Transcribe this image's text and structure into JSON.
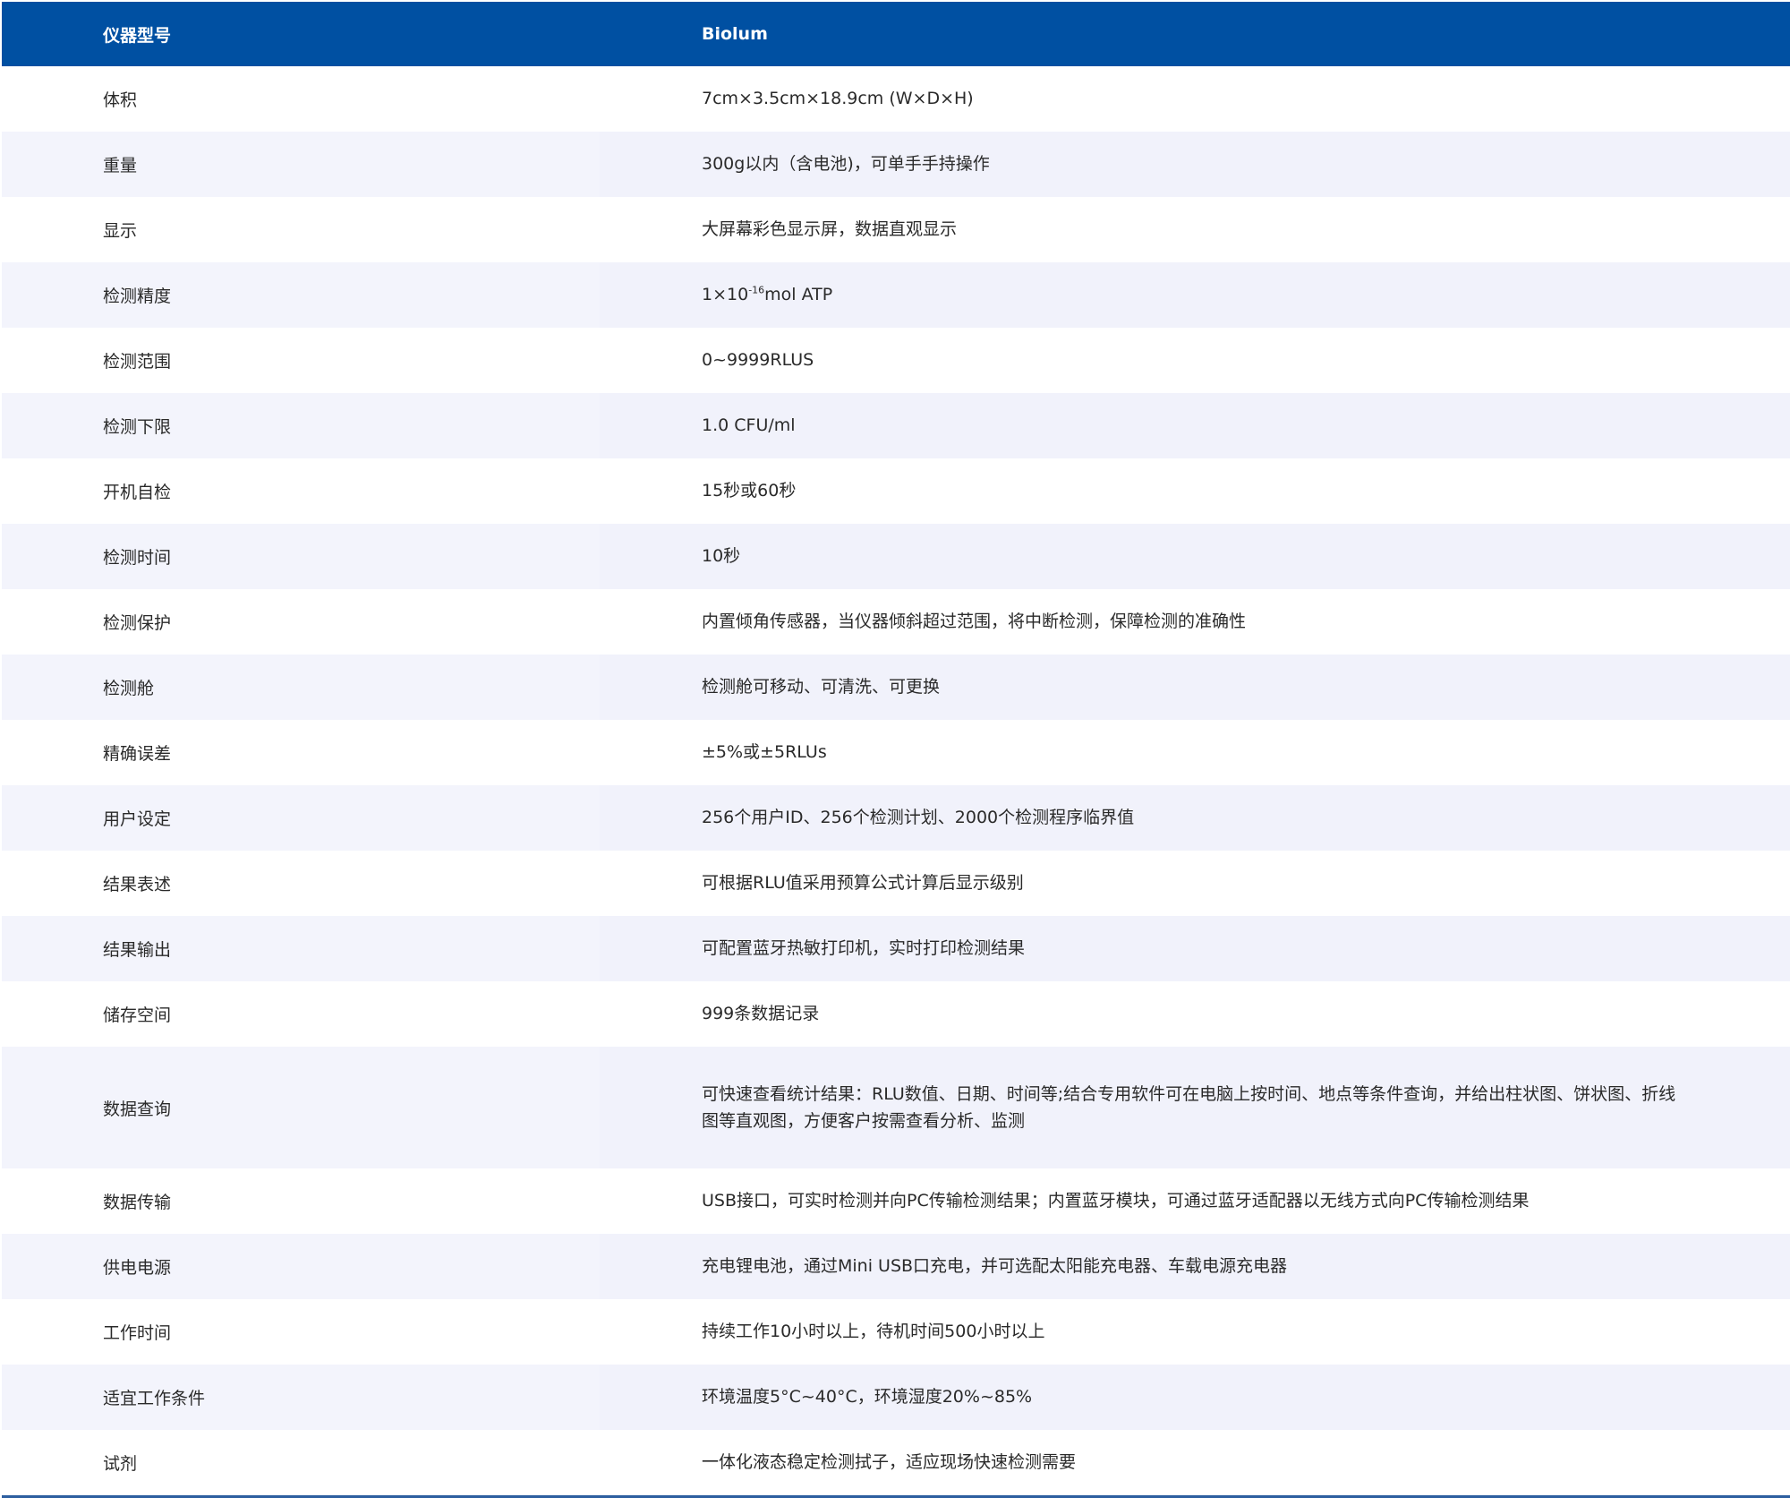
{
  "header": {
    "label": "仪器型号",
    "value": "Biolum"
  },
  "colors": {
    "header_bg": "#0050a2",
    "alt_row_bg": "#f3f4fc",
    "border": "#2d5fa0"
  },
  "rows": [
    {
      "label": "体积",
      "value": "7cm×3.5cm×18.9cm (W×D×H)"
    },
    {
      "label": "重量",
      "value": "300g以内（含电池)，可单手手持操作"
    },
    {
      "label": "显示",
      "value": "大屏幕彩色显示屏，数据直观显示"
    },
    {
      "label": "检测精度",
      "value": "1×10",
      "value_sup": "-16",
      "value_after": "mol ATP"
    },
    {
      "label": "检测范围",
      "value": "0~9999RLUS"
    },
    {
      "label": "检测下限",
      "value": "1.0 CFU/ml"
    },
    {
      "label": "开机自检",
      "value": "15秒或60秒"
    },
    {
      "label": "检测时间",
      "value": "10秒"
    },
    {
      "label": "检测保护",
      "value": "内置倾角传感器，当仪器倾斜超过范围，将中断检测，保障检测的准确性"
    },
    {
      "label": "检测舱",
      "value": "检测舱可移动、可清洗、可更换"
    },
    {
      "label": "精确误差",
      "value": "±5%或±5RLUs"
    },
    {
      "label": "用户设定",
      "value": "256个用户ID、256个检测计划、2000个检测程序临界值"
    },
    {
      "label": "结果表述",
      "value": "可根据RLU值采用预算公式计算后显示级别"
    },
    {
      "label": "结果输出",
      "value": "可配置蓝牙热敏打印机，实时打印检测结果"
    },
    {
      "label": "储存空间",
      "value": "999条数据记录"
    },
    {
      "label": "数据查询",
      "value": "可快速查看统计结果：RLU数值、日期、时间等;结合专用软件可在电脑上按时间、地点等条件查询，并给出柱状图、饼状图、折线图等直观图，方便客户按需查看分析、监测"
    },
    {
      "label": "数据传输",
      "value": "USB接口，可实时检测并向PC传输检测结果；内置蓝牙模块，可通过蓝牙适配器以无线方式向PC传输检测结果"
    },
    {
      "label": "供电电源",
      "value": "充电锂电池，通过Mini USB口充电，并可选配太阳能充电器、车载电源充电器"
    },
    {
      "label": "工作时间",
      "value": "持续工作10小时以上，待机时间500小时以上"
    },
    {
      "label": "适宜工作条件",
      "value": "环境温度5°C~40°C，环境湿度20%~85%"
    },
    {
      "label": "试剂",
      "value": "一体化液态稳定检测拭子，适应现场快速检测需要"
    }
  ]
}
